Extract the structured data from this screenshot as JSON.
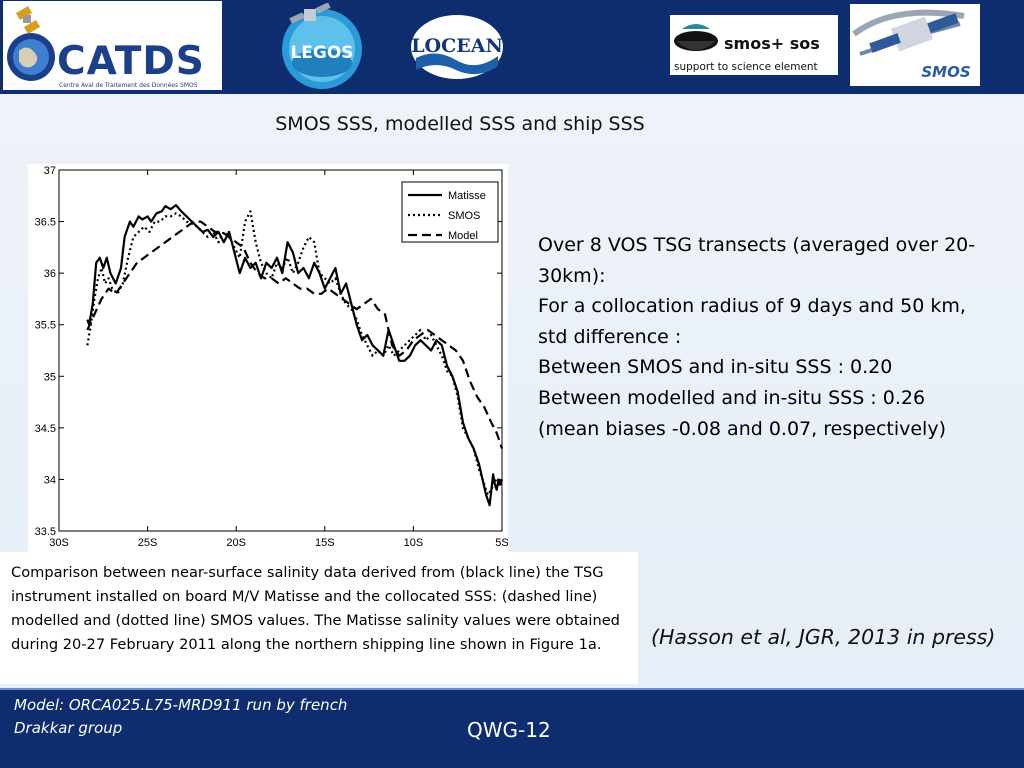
{
  "header": {
    "logos": [
      {
        "name": "catds-logo",
        "text": "CATDS",
        "subtext": "Centre Aval de Traitement des Données SMOS"
      },
      {
        "name": "legos-logo",
        "text": "LEGOS"
      },
      {
        "name": "locean-logo",
        "text": "LOCEAN"
      },
      {
        "name": "smos-sos-logo",
        "text": "smos+ sos",
        "subtext": "support to science element"
      },
      {
        "name": "smos-logo",
        "text": "SMOS"
      }
    ]
  },
  "slide": {
    "title": "SMOS SSS, modelled SSS and ship SSS",
    "summary_lines": [
      "Over 8 VOS TSG transects (averaged over 20-",
      "30km):",
      "For a collocation radius of 9 days and 50 km,",
      "std difference :",
      "Between SMOS and in-situ SSS : 0.20",
      "Between modelled and in-situ SSS : 0.26",
      "(mean biases -0.08 and 0.07, respectively)"
    ],
    "caption": "Comparison between near-surface salinity data derived from (black line) the TSG instrument installed on board M/V Matisse and the collocated SSS: (dashed line)  modelled and (dotted line) SMOS values.  The Matisse salinity values were obtained during 20-27 February 2011 along the northern shipping line shown in Figure 1a.",
    "citation": "(Hasson et al, JGR, 2013 in press)"
  },
  "footer": {
    "model_note": "Model: ORCA025.L75-MRD911 run by french Drakkar group",
    "meeting": "QWG-12"
  },
  "colors": {
    "header_bg": "#0d2d6f",
    "footer_bg": "#0d2d6f",
    "content_bg": "#eaf1f8",
    "series": "#000000"
  },
  "chart_data": {
    "type": "line",
    "title": "",
    "xlabel": "",
    "ylabel": "",
    "xlim": [
      30,
      5
    ],
    "ylim": [
      33.5,
      37
    ],
    "x_ticks": [
      30,
      25,
      20,
      15,
      10,
      5
    ],
    "x_tick_labels": [
      "30S",
      "25S",
      "20S",
      "15S",
      "10S",
      "5S"
    ],
    "y_ticks": [
      33.5,
      34,
      34.5,
      35,
      35.5,
      36,
      36.5,
      37
    ],
    "y_tick_labels": [
      "33.5",
      "34",
      "34.5",
      "35",
      "35.5",
      "36",
      "36.5",
      "37"
    ],
    "grid": false,
    "legend_position": "top-right",
    "x_units": "degrees latitude south",
    "series": [
      {
        "name": "Matisse",
        "style": "solid",
        "x": [
          28.4,
          28.3,
          28.1,
          27.9,
          27.7,
          27.5,
          27.3,
          27.1,
          26.8,
          26.5,
          26.3,
          26.0,
          25.8,
          25.5,
          25.3,
          25.0,
          24.8,
          24.5,
          24.2,
          24.0,
          23.7,
          23.4,
          23.1,
          22.8,
          22.5,
          22.2,
          21.9,
          21.6,
          21.3,
          21.0,
          20.7,
          20.4,
          20.1,
          19.8,
          19.5,
          19.2,
          18.9,
          18.6,
          18.3,
          18.0,
          17.7,
          17.4,
          17.1,
          16.8,
          16.5,
          16.2,
          15.9,
          15.6,
          15.3,
          15.0,
          14.7,
          14.4,
          14.1,
          13.8,
          13.5,
          13.2,
          12.9,
          12.6,
          12.3,
          12.0,
          11.7,
          11.4,
          11.1,
          10.8,
          10.5,
          10.2,
          9.9,
          9.6,
          9.3,
          9.0,
          8.7,
          8.4,
          8.1,
          7.8,
          7.5,
          7.2,
          6.9,
          6.6,
          6.3,
          6.1,
          5.9,
          5.7,
          5.6,
          5.5,
          5.4,
          5.3,
          5.2,
          5.1,
          5.0
        ],
        "y": [
          35.55,
          35.5,
          35.7,
          36.1,
          36.15,
          36.05,
          36.15,
          36.0,
          35.9,
          36.05,
          36.35,
          36.5,
          36.45,
          36.55,
          36.52,
          36.55,
          36.5,
          36.58,
          36.6,
          36.65,
          36.62,
          36.66,
          36.6,
          36.55,
          36.5,
          36.45,
          36.4,
          36.42,
          36.35,
          36.4,
          36.3,
          36.4,
          36.2,
          36.0,
          36.15,
          36.05,
          36.1,
          35.95,
          36.1,
          36.05,
          36.15,
          36.0,
          36.3,
          36.2,
          36.0,
          36.05,
          35.95,
          36.1,
          36.0,
          35.85,
          35.95,
          36.05,
          35.8,
          35.9,
          35.7,
          35.5,
          35.35,
          35.4,
          35.3,
          35.25,
          35.2,
          35.45,
          35.3,
          35.15,
          35.15,
          35.2,
          35.3,
          35.35,
          35.3,
          35.25,
          35.35,
          35.3,
          35.1,
          35.0,
          34.85,
          34.55,
          34.4,
          34.3,
          34.15,
          34.0,
          33.85,
          33.75,
          33.9,
          34.05,
          33.95,
          33.9,
          34.0,
          33.95,
          34.0
        ]
      },
      {
        "name": "SMOS",
        "style": "dotted",
        "x": [
          28.4,
          28.2,
          28.0,
          27.8,
          27.6,
          27.4,
          27.2,
          27.0,
          26.7,
          26.4,
          26.1,
          25.8,
          25.5,
          25.2,
          24.9,
          24.6,
          24.3,
          24.0,
          23.7,
          23.4,
          23.1,
          22.8,
          22.5,
          22.2,
          21.9,
          21.6,
          21.3,
          21.0,
          20.7,
          20.4,
          20.1,
          19.8,
          19.5,
          19.2,
          18.9,
          18.6,
          18.3,
          18.0,
          17.7,
          17.4,
          17.1,
          16.8,
          16.5,
          16.2,
          15.9,
          15.6,
          15.3,
          15.0,
          14.7,
          14.4,
          14.1,
          13.8,
          13.5,
          13.2,
          12.9,
          12.6,
          12.3,
          12.0,
          11.7,
          11.4,
          11.1,
          10.8,
          10.5,
          10.2,
          9.9,
          9.6,
          9.3,
          9.0,
          8.7,
          8.4,
          8.1,
          7.8,
          7.5,
          7.2,
          6.9,
          6.6,
          6.3,
          6.0,
          5.8,
          5.6,
          5.4,
          5.2,
          5.0
        ],
        "y": [
          35.3,
          35.5,
          35.75,
          35.95,
          36.05,
          35.9,
          35.95,
          35.85,
          35.8,
          35.9,
          36.15,
          36.35,
          36.4,
          36.45,
          36.4,
          36.5,
          36.5,
          36.55,
          36.55,
          36.58,
          36.55,
          36.5,
          36.48,
          36.45,
          36.4,
          36.35,
          36.4,
          36.3,
          36.4,
          36.35,
          36.25,
          36.15,
          36.5,
          36.6,
          36.3,
          36.1,
          36.0,
          35.95,
          36.1,
          36.05,
          36.15,
          36.0,
          36.1,
          36.25,
          36.35,
          36.3,
          36.0,
          35.95,
          35.9,
          35.95,
          35.8,
          35.7,
          35.65,
          35.55,
          35.4,
          35.3,
          35.2,
          35.25,
          35.2,
          35.3,
          35.2,
          35.25,
          35.3,
          35.35,
          35.4,
          35.45,
          35.35,
          35.4,
          35.3,
          35.2,
          35.05,
          35.0,
          34.8,
          34.5,
          34.4,
          34.3,
          34.1,
          33.95,
          33.85,
          33.9,
          34.0,
          33.95,
          34.0
        ]
      },
      {
        "name": "Model",
        "style": "dashed",
        "x": [
          28.4,
          28.0,
          27.6,
          27.2,
          26.8,
          26.4,
          26.0,
          25.6,
          25.2,
          24.8,
          24.4,
          24.0,
          23.6,
          23.2,
          22.8,
          22.4,
          22.0,
          21.6,
          21.2,
          20.8,
          20.4,
          20.0,
          19.6,
          19.2,
          18.8,
          18.4,
          18.0,
          17.6,
          17.2,
          16.8,
          16.4,
          16.0,
          15.6,
          15.2,
          14.8,
          14.4,
          14.0,
          13.6,
          13.2,
          12.8,
          12.4,
          12.0,
          11.6,
          11.2,
          10.8,
          10.4,
          10.0,
          9.6,
          9.2,
          8.8,
          8.4,
          8.0,
          7.6,
          7.2,
          6.8,
          6.4,
          6.0,
          5.6,
          5.3,
          5.0
        ],
        "y": [
          35.45,
          35.6,
          35.75,
          35.85,
          35.8,
          35.9,
          36.0,
          36.1,
          36.15,
          36.2,
          36.25,
          36.3,
          36.35,
          36.4,
          36.45,
          36.5,
          36.5,
          36.45,
          36.4,
          36.4,
          36.35,
          36.3,
          36.25,
          36.1,
          36.0,
          35.95,
          35.95,
          35.9,
          35.95,
          35.9,
          35.85,
          35.85,
          35.8,
          35.8,
          35.85,
          35.8,
          35.75,
          35.7,
          35.65,
          35.7,
          35.75,
          35.65,
          35.6,
          35.3,
          35.2,
          35.25,
          35.35,
          35.4,
          35.45,
          35.4,
          35.35,
          35.3,
          35.25,
          35.15,
          34.95,
          34.8,
          34.7,
          34.55,
          34.45,
          34.3
        ]
      }
    ]
  }
}
